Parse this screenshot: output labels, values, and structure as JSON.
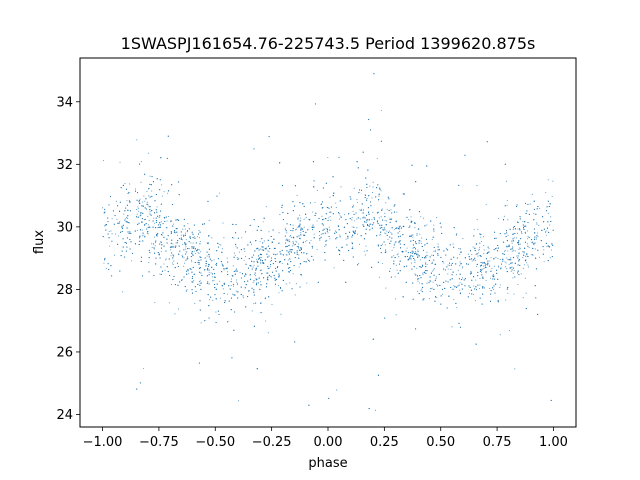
{
  "chart_data": {
    "type": "scatter",
    "title": "1SWASPJ161654.76-225743.5 Period 1399620.875s",
    "xlabel": "phase",
    "ylabel": "flux",
    "xlim": [
      -1.1,
      1.1
    ],
    "ylim": [
      23.6,
      35.4
    ],
    "x_ticks": [
      -1.0,
      -0.75,
      -0.5,
      -0.25,
      0.0,
      0.25,
      0.5,
      0.75,
      1.0
    ],
    "x_tick_labels": [
      "−1.00",
      "−0.75",
      "−0.50",
      "−0.25",
      "0.00",
      "0.25",
      "0.50",
      "0.75",
      "1.00"
    ],
    "y_ticks": [
      24,
      26,
      28,
      30,
      32,
      34
    ],
    "y_tick_labels": [
      "24",
      "26",
      "28",
      "30",
      "32",
      "34"
    ],
    "grid": false,
    "marker_color": "#1f77b4",
    "series": [
      {
        "phase_mean_flux": [
          [
            -1.0,
            30.0
          ],
          [
            -0.95,
            29.8
          ],
          [
            -0.9,
            30.2
          ],
          [
            -0.85,
            30.3
          ],
          [
            -0.8,
            30.4
          ],
          [
            -0.75,
            29.8
          ],
          [
            -0.7,
            29.6
          ],
          [
            -0.65,
            29.3
          ],
          [
            -0.6,
            29.0
          ],
          [
            -0.55,
            28.9
          ],
          [
            -0.5,
            28.7
          ],
          [
            -0.45,
            28.5
          ],
          [
            -0.4,
            28.5
          ],
          [
            -0.35,
            28.6
          ],
          [
            -0.3,
            28.7
          ],
          [
            -0.25,
            28.9
          ],
          [
            -0.2,
            29.1
          ],
          [
            -0.15,
            29.4
          ],
          [
            -0.1,
            29.7
          ],
          [
            -0.05,
            29.8
          ],
          [
            0.0,
            30.0
          ],
          [
            0.05,
            29.8
          ],
          [
            0.1,
            30.2
          ],
          [
            0.15,
            30.3
          ],
          [
            0.2,
            30.4
          ],
          [
            0.25,
            29.8
          ],
          [
            0.3,
            29.6
          ],
          [
            0.35,
            29.3
          ],
          [
            0.4,
            29.0
          ],
          [
            0.45,
            28.9
          ],
          [
            0.5,
            28.7
          ],
          [
            0.55,
            28.5
          ],
          [
            0.6,
            28.5
          ],
          [
            0.65,
            28.6
          ],
          [
            0.7,
            28.7
          ],
          [
            0.75,
            28.9
          ],
          [
            0.8,
            29.1
          ],
          [
            0.85,
            29.4
          ],
          [
            0.9,
            29.7
          ],
          [
            0.95,
            29.8
          ],
          [
            1.0,
            30.0
          ]
        ],
        "scatter_sigma": 0.6,
        "outlier_flux_range": [
          24.0,
          35.0
        ]
      }
    ]
  }
}
